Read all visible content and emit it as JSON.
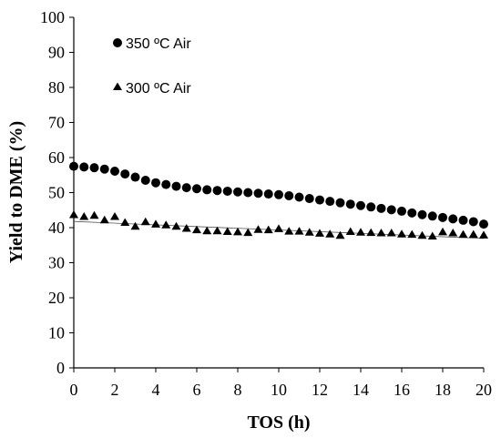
{
  "chart_data": {
    "type": "scatter",
    "xlabel": "TOS (h)",
    "ylabel": "Yield to DME (%)",
    "xlim": [
      0,
      20
    ],
    "ylim": [
      0,
      100
    ],
    "xticks": [
      "0",
      "2",
      "4",
      "6",
      "8",
      "10",
      "12",
      "14",
      "16",
      "18",
      "20"
    ],
    "yticks": [
      "0",
      "10",
      "20",
      "30",
      "40",
      "50",
      "60",
      "70",
      "80",
      "90",
      "100"
    ],
    "grid": false,
    "legend_position": "top-left",
    "series": [
      {
        "name": "350 ºC Air",
        "marker": "circle",
        "color": "#000000",
        "trendline": false,
        "x": [
          0,
          0.5,
          1,
          1.5,
          2,
          2.5,
          3,
          3.5,
          4,
          4.5,
          5,
          5.5,
          6,
          6.5,
          7,
          7.5,
          8,
          8.5,
          9,
          9.5,
          10,
          10.5,
          11,
          11.5,
          12,
          12.5,
          13,
          13.5,
          14,
          14.5,
          15,
          15.5,
          16,
          16.5,
          17,
          17.5,
          18,
          18.5,
          19,
          19.5,
          20
        ],
        "y": [
          57.5,
          57.3,
          57.1,
          56.7,
          56.1,
          55.3,
          54.4,
          53.5,
          52.8,
          52.3,
          51.8,
          51.4,
          51.1,
          50.8,
          50.6,
          50.4,
          50.2,
          50.0,
          49.8,
          49.6,
          49.4,
          49.1,
          48.7,
          48.3,
          47.9,
          47.5,
          47.1,
          46.7,
          46.3,
          45.9,
          45.5,
          45.1,
          44.7,
          44.2,
          43.7,
          43.3,
          42.9,
          42.5,
          42.1,
          41.7,
          41.0
        ]
      },
      {
        "name": "300 ºC Air",
        "marker": "triangle",
        "color": "#000000",
        "trendline": true,
        "x": [
          0,
          0.5,
          1,
          1.5,
          2,
          2.5,
          3,
          3.5,
          4,
          4.5,
          5,
          5.5,
          6,
          6.5,
          7,
          7.5,
          8,
          8.5,
          9,
          9.5,
          10,
          10.5,
          11,
          11.5,
          12,
          12.5,
          13,
          13.5,
          14,
          14.5,
          15,
          15.5,
          16,
          16.5,
          17,
          17.5,
          18,
          18.5,
          19,
          19.5,
          20
        ],
        "y": [
          43.5,
          43.0,
          43.3,
          42.0,
          43.0,
          41.3,
          40.2,
          41.5,
          40.8,
          40.6,
          40.2,
          39.6,
          39.2,
          38.9,
          38.9,
          38.7,
          38.6,
          38.4,
          39.3,
          39.2,
          39.5,
          38.8,
          38.8,
          38.5,
          38.2,
          38.0,
          37.6,
          38.7,
          38.5,
          38.4,
          38.3,
          38.3,
          38.0,
          37.9,
          37.6,
          37.4,
          38.6,
          38.3,
          37.9,
          37.9,
          37.7
        ]
      }
    ]
  }
}
